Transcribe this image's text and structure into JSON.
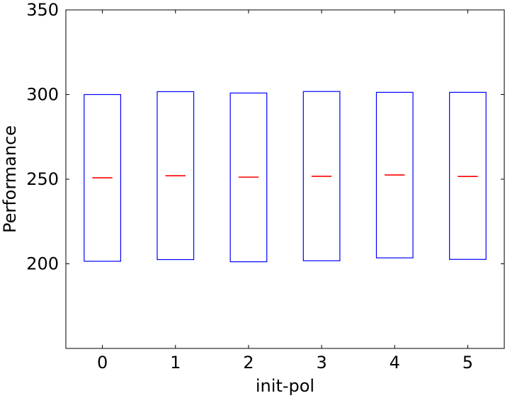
{
  "chart_data": {
    "type": "boxplot",
    "title": "",
    "xlabel": "init-pol",
    "ylabel": "Performance",
    "categories": [
      "0",
      "1",
      "2",
      "3",
      "4",
      "5"
    ],
    "boxes": [
      {
        "q1": 201.5,
        "median": 250.8,
        "q3": 300.0
      },
      {
        "q1": 202.5,
        "median": 252.0,
        "q3": 301.7
      },
      {
        "q1": 201.2,
        "median": 251.2,
        "q3": 300.9
      },
      {
        "q1": 201.8,
        "median": 251.7,
        "q3": 301.8
      },
      {
        "q1": 203.5,
        "median": 252.5,
        "q3": 301.3
      },
      {
        "q1": 202.6,
        "median": 251.6,
        "q3": 301.3
      }
    ],
    "ylim": [
      150,
      350
    ],
    "yticks": [
      200,
      250,
      300,
      350
    ],
    "ytick_labels": [
      "200",
      "250",
      "300",
      "350"
    ],
    "grid": false,
    "colors": {
      "box": "#0000ff",
      "median": "#ff0000",
      "axis": "#000000"
    }
  }
}
